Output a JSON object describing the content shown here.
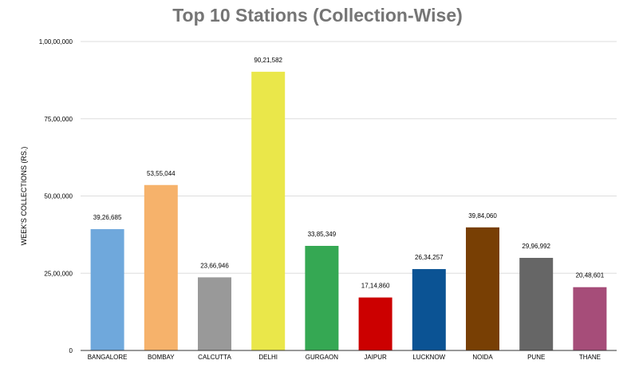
{
  "chart_data": {
    "type": "bar",
    "title": "Top 10 Stations (Collection-Wise)",
    "xlabel": "",
    "ylabel": "WEEK'S COLLECTIONS (RS.)",
    "ylim": [
      0,
      10000000
    ],
    "yticks": [
      {
        "value": 0,
        "label": "0"
      },
      {
        "value": 2500000,
        "label": "25,00,000"
      },
      {
        "value": 5000000,
        "label": "50,00,000"
      },
      {
        "value": 7500000,
        "label": "75,00,000"
      },
      {
        "value": 10000000,
        "label": "1,00,00,000"
      }
    ],
    "grid": true,
    "legend": "none",
    "categories": [
      "BANGALORE",
      "BOMBAY",
      "CALCUTTA",
      "DELHI",
      "GURGAON",
      "JAIPUR",
      "LUCKNOW",
      "NOIDA",
      "PUNE",
      "THANE"
    ],
    "values": [
      3926685,
      5355044,
      2366946,
      9021582,
      3385349,
      1714860,
      2634257,
      3984060,
      2996992,
      2048601
    ],
    "data_labels": [
      "39,26,685",
      "53,55,044",
      "23,66,946",
      "90,21,582",
      "33,85,349",
      "17,14,860",
      "26,34,257",
      "39,84,060",
      "29,96,992",
      "20,48,601"
    ],
    "colors": [
      "#6fa8dc",
      "#f6b26b",
      "#999999",
      "#eae74a",
      "#35a853",
      "#cc0000",
      "#0b5394",
      "#783f04",
      "#666666",
      "#a64d79"
    ],
    "gridline_color": "#dddddd",
    "axis_color": "#333333"
  }
}
